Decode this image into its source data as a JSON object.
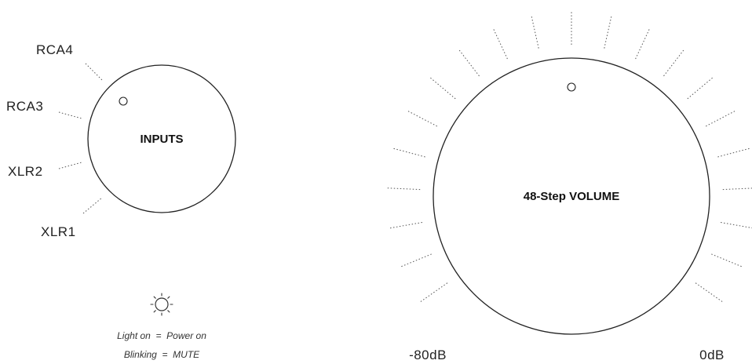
{
  "inputs_knob": {
    "title": "INPUTS",
    "labels": [
      "RCA4",
      "RCA3",
      "XLR2",
      "XLR1"
    ]
  },
  "volume_knob": {
    "title": "48-Step VOLUME",
    "min_label": "-80dB",
    "max_label": "0dB"
  },
  "power_indicator": {
    "icon": "sun-icon",
    "line1": "Light on  =  Power on",
    "line2": "Blinking  =  MUTE"
  }
}
